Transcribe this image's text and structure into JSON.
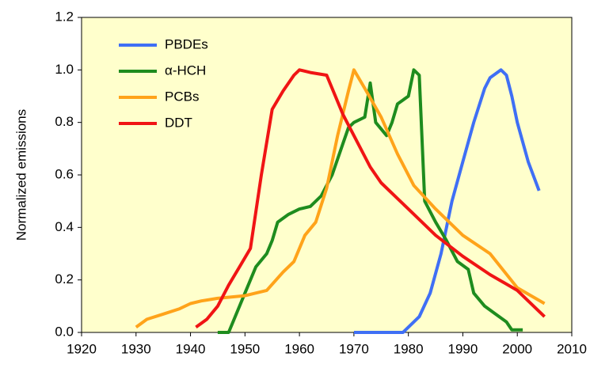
{
  "chart_data": {
    "type": "line",
    "ylabel": "Normalized emissions",
    "xlim": [
      1920,
      2010
    ],
    "xticks": [
      1920,
      1930,
      1940,
      1950,
      1960,
      1970,
      1980,
      1990,
      2000,
      2010
    ],
    "ylim": [
      0,
      1.2
    ],
    "yticks": [
      {
        "value": 0,
        "label": "0.0"
      },
      0.2,
      0.4,
      0.6,
      0.8,
      {
        "value": 1,
        "label": "1.0"
      },
      1.2
    ],
    "legend": "upper left",
    "series": [
      {
        "name": "PBDEs",
        "color": "#3f6ff5",
        "x": [
          1970,
          1979,
          1982,
          1984,
          1986,
          1988,
          1990,
          1992,
          1994,
          1995,
          1997,
          1998,
          1999,
          2000,
          2002,
          2004
        ],
        "values": [
          0,
          0,
          0.06,
          0.15,
          0.3,
          0.5,
          0.65,
          0.8,
          0.93,
          0.97,
          1.0,
          0.98,
          0.9,
          0.8,
          0.65,
          0.54
        ]
      },
      {
        "name": "α-HCH",
        "color": "#1e8c1e",
        "x": [
          1945,
          1947,
          1948,
          1950,
          1952,
          1954,
          1955,
          1956,
          1958,
          1960,
          1962,
          1964,
          1966,
          1968,
          1969,
          1970,
          1972,
          1973,
          1974,
          1976,
          1977,
          1978,
          1980,
          1981,
          1982,
          1983,
          1985,
          1987,
          1989,
          1991,
          1992,
          1994,
          1996,
          1998,
          1999,
          2001
        ],
        "values": [
          0,
          0,
          0.05,
          0.15,
          0.25,
          0.3,
          0.35,
          0.42,
          0.45,
          0.47,
          0.48,
          0.52,
          0.6,
          0.72,
          0.78,
          0.8,
          0.82,
          0.95,
          0.8,
          0.75,
          0.8,
          0.87,
          0.9,
          1.0,
          0.98,
          0.5,
          0.42,
          0.35,
          0.27,
          0.24,
          0.15,
          0.1,
          0.07,
          0.04,
          0.01,
          0.01
        ]
      },
      {
        "name": "PCBs",
        "color": "#ffa31a",
        "x": [
          1930,
          1932,
          1935,
          1938,
          1940,
          1942,
          1945,
          1950,
          1954,
          1957,
          1959,
          1961,
          1963,
          1965,
          1967,
          1969,
          1970,
          1972,
          1975,
          1978,
          1981,
          1985,
          1990,
          1995,
          2000,
          2005
        ],
        "values": [
          0.02,
          0.05,
          0.07,
          0.09,
          0.11,
          0.12,
          0.13,
          0.14,
          0.16,
          0.23,
          0.27,
          0.37,
          0.42,
          0.55,
          0.75,
          0.92,
          1.0,
          0.93,
          0.82,
          0.68,
          0.56,
          0.47,
          0.37,
          0.3,
          0.17,
          0.11
        ]
      },
      {
        "name": "DDT",
        "color": "#f01414",
        "x": [
          1941,
          1943,
          1945,
          1947,
          1949,
          1951,
          1953,
          1955,
          1957,
          1959,
          1960,
          1962,
          1965,
          1966,
          1968,
          1970,
          1973,
          1975,
          1980,
          1985,
          1990,
          1995,
          2000,
          2005
        ],
        "values": [
          0.02,
          0.05,
          0.1,
          0.18,
          0.25,
          0.32,
          0.6,
          0.85,
          0.92,
          0.98,
          1.0,
          0.99,
          0.98,
          0.93,
          0.83,
          0.75,
          0.63,
          0.57,
          0.47,
          0.37,
          0.29,
          0.22,
          0.16,
          0.06
        ]
      }
    ]
  }
}
